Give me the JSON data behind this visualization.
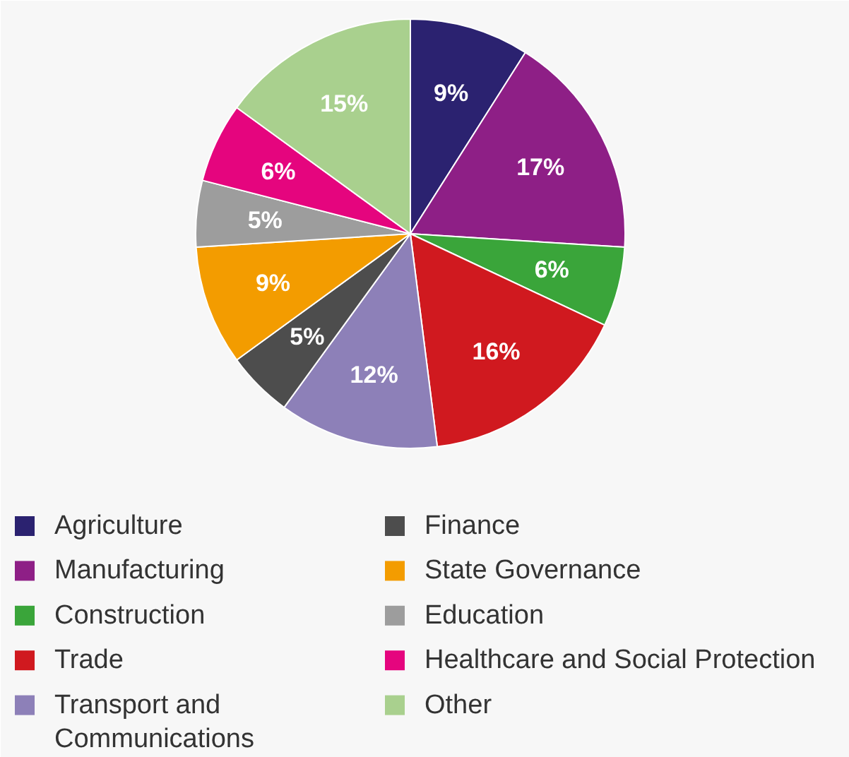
{
  "chart_data": {
    "type": "pie",
    "categories": [
      "Agriculture",
      "Manufacturing",
      "Construction",
      "Trade",
      "Transport and Communications",
      "Finance",
      "State Governance",
      "Education",
      "Healthcare and Social Protection",
      "Other"
    ],
    "values": [
      9,
      17,
      6,
      16,
      12,
      5,
      9,
      5,
      6,
      15
    ],
    "colors": [
      "#2b2270",
      "#8e1f86",
      "#3aa53a",
      "#d0191f",
      "#8d80b8",
      "#4d4d4d",
      "#f39c00",
      "#9d9d9d",
      "#e5057e",
      "#a9d08e"
    ],
    "value_labels": [
      "9%",
      "17%",
      "6%",
      "16%",
      "12%",
      "5%",
      "9%",
      "5%",
      "6%",
      "15%"
    ],
    "legend": "bottom"
  }
}
